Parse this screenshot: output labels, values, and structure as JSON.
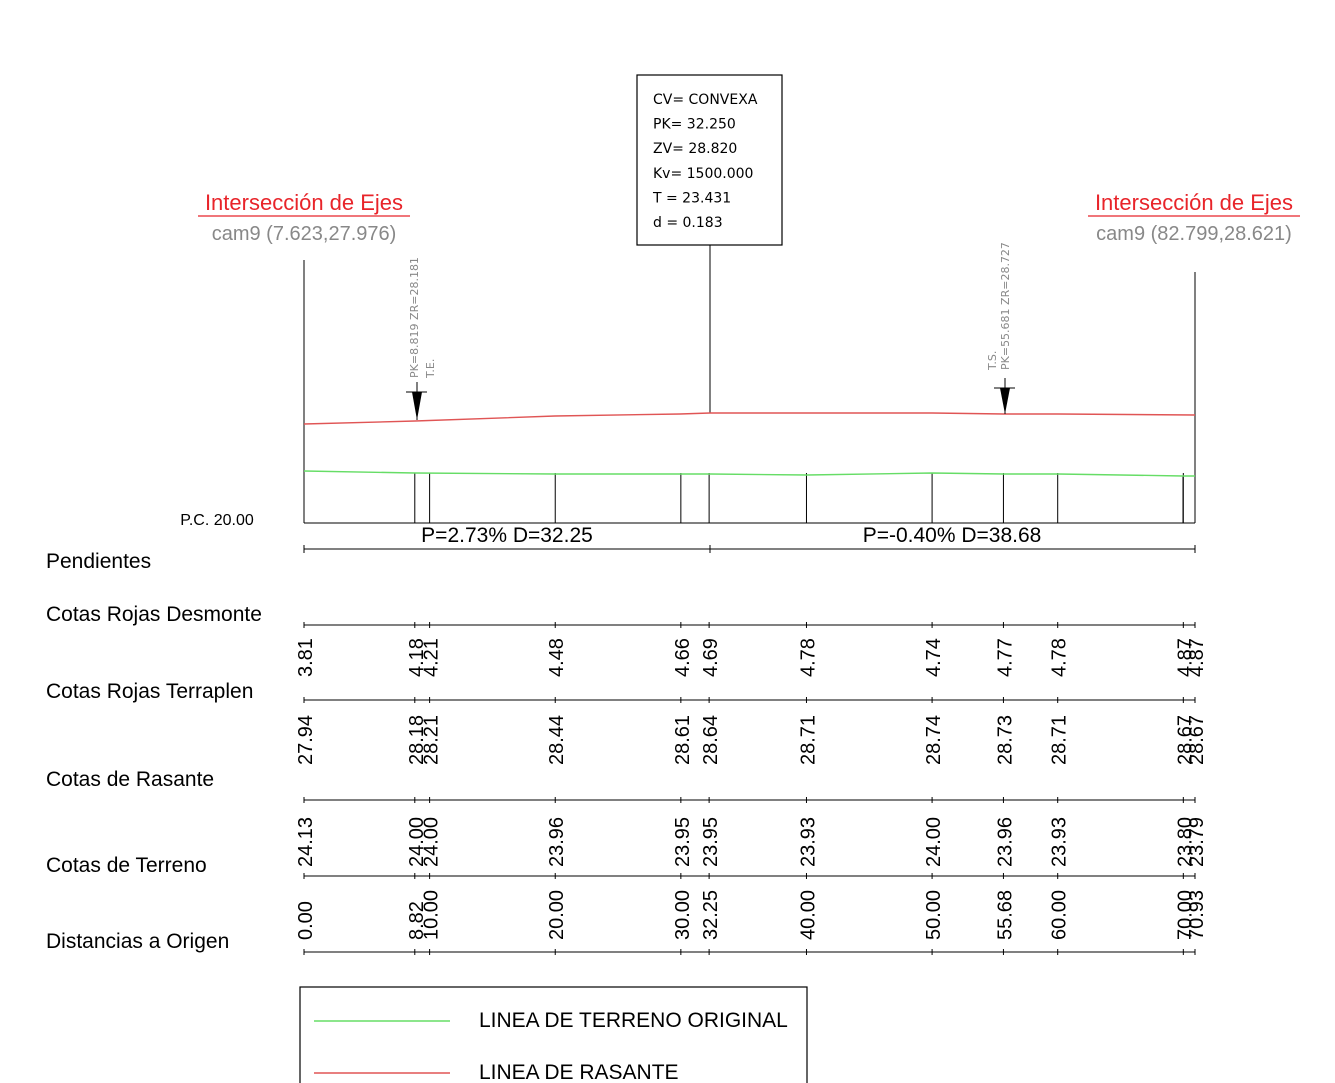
{
  "left_intersection": {
    "title": "Intersección de Ejes",
    "sub": "cam9 (7.623,27.976)"
  },
  "right_intersection": {
    "title": "Intersección de Ejes",
    "sub": "cam9 (82.799,28.621)"
  },
  "curve_box": [
    "CV= CONVEXA",
    "PK= 32.250",
    "ZV= 28.820",
    "Kv= 1500.000",
    "T = 23.431",
    "d = 0.183"
  ],
  "te_label": {
    "line1": "PK=8.819  ZR=28.181",
    "line2": "T.E."
  },
  "ts_label": {
    "line1": "T.S.",
    "line2": "PK=55.681  ZR=28.727"
  },
  "pc_label": "P.C. 20.00",
  "slope_left": "P=2.73% D=32.25",
  "slope_right": "P=-0.40% D=38.68",
  "row_labels": {
    "pendientes": "Pendientes",
    "desmonte": "Cotas Rojas Desmonte",
    "terraplen": "Cotas Rojas Terraplen",
    "rasante": "Cotas de Rasante",
    "terreno": "Cotas de Terreno",
    "distancias": "Distancias a Origen"
  },
  "stations": [
    {
      "dist": "0.00",
      "terreno": "24.13",
      "rasante": "27.94",
      "roja": "3.81"
    },
    {
      "dist": "8.82",
      "terreno": "24.00",
      "rasante": "28.18",
      "roja": "4.18"
    },
    {
      "dist": "10.00",
      "terreno": "24.00",
      "rasante": "28.21",
      "roja": "4.21"
    },
    {
      "dist": "20.00",
      "terreno": "23.96",
      "rasante": "28.44",
      "roja": "4.48"
    },
    {
      "dist": "30.00",
      "terreno": "23.95",
      "rasante": "28.61",
      "roja": "4.66"
    },
    {
      "dist": "32.25",
      "terreno": "23.95",
      "rasante": "28.64",
      "roja": "4.69"
    },
    {
      "dist": "40.00",
      "terreno": "23.93",
      "rasante": "28.71",
      "roja": "4.78"
    },
    {
      "dist": "50.00",
      "terreno": "24.00",
      "rasante": "28.74",
      "roja": "4.74"
    },
    {
      "dist": "55.68",
      "terreno": "23.96",
      "rasante": "28.73",
      "roja": "4.77"
    },
    {
      "dist": "60.00",
      "terreno": "23.93",
      "rasante": "28.71",
      "roja": "4.78"
    },
    {
      "dist": "70.00",
      "terreno": "23.80",
      "rasante": "28.67",
      "roja": "4.87"
    },
    {
      "dist": "70.93",
      "terreno": "23.79",
      "rasante": "28.67",
      "roja": "4.87"
    }
  ],
  "legend": {
    "terrain": "LINEA DE TERRENO ORIGINAL",
    "rasante": "LINEA DE RASANTE",
    "terrain_color": "#66dd66",
    "rasante_color": "#e05555"
  }
}
